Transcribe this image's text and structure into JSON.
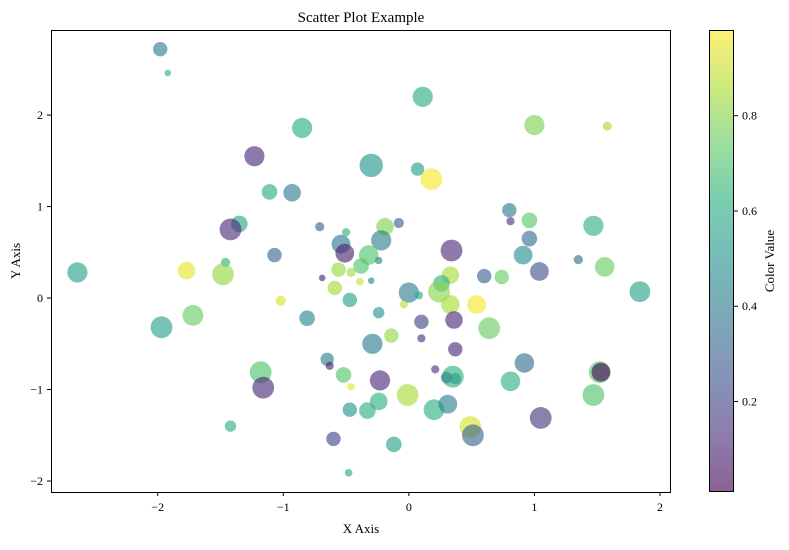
{
  "chart_data": {
    "type": "scatter",
    "title": "Scatter Plot Example",
    "xlabel": "X Axis",
    "ylabel": "Y Axis",
    "xlim": [
      -2.85,
      2.08
    ],
    "ylim": [
      -2.12,
      2.93
    ],
    "xticks": [
      -2,
      -1,
      0,
      1,
      2
    ],
    "yticks": [
      -2,
      -1,
      0,
      1,
      2
    ],
    "grid": false,
    "colorbar": {
      "label": "Color Value",
      "range": [
        0.01,
        0.98
      ],
      "ticks": [
        0.2,
        0.4,
        0.6,
        0.8
      ],
      "colormap": "viridis"
    },
    "points": [
      {
        "x": -1.98,
        "y": 2.72,
        "c": 0.42,
        "s": 0.45
      },
      {
        "x": -1.92,
        "y": 2.46,
        "c": 0.62,
        "s": 0.08
      },
      {
        "x": 0.11,
        "y": 2.2,
        "c": 0.6,
        "s": 0.72
      },
      {
        "x": -0.85,
        "y": 1.86,
        "c": 0.6,
        "s": 0.72
      },
      {
        "x": 1.0,
        "y": 1.89,
        "c": 0.78,
        "s": 0.72
      },
      {
        "x": 1.58,
        "y": 1.88,
        "c": 0.85,
        "s": 0.2
      },
      {
        "x": -1.23,
        "y": 1.55,
        "c": 0.12,
        "s": 0.72
      },
      {
        "x": -0.3,
        "y": 1.45,
        "c": 0.5,
        "s": 0.88
      },
      {
        "x": 0.07,
        "y": 1.41,
        "c": 0.55,
        "s": 0.4
      },
      {
        "x": 0.18,
        "y": 1.3,
        "c": 0.97,
        "s": 0.8
      },
      {
        "x": -1.11,
        "y": 1.16,
        "c": 0.6,
        "s": 0.5
      },
      {
        "x": -0.93,
        "y": 1.15,
        "c": 0.4,
        "s": 0.6
      },
      {
        "x": 0.8,
        "y": 0.96,
        "c": 0.4,
        "s": 0.45
      },
      {
        "x": 0.96,
        "y": 0.85,
        "c": 0.72,
        "s": 0.5
      },
      {
        "x": -1.35,
        "y": 0.81,
        "c": 0.58,
        "s": 0.55
      },
      {
        "x": -1.42,
        "y": 0.75,
        "c": 0.12,
        "s": 0.8
      },
      {
        "x": -0.71,
        "y": 0.78,
        "c": 0.3,
        "s": 0.2
      },
      {
        "x": -0.08,
        "y": 0.82,
        "c": 0.3,
        "s": 0.25
      },
      {
        "x": -0.19,
        "y": 0.78,
        "c": 0.78,
        "s": 0.6
      },
      {
        "x": 1.47,
        "y": 0.79,
        "c": 0.62,
        "s": 0.72
      },
      {
        "x": 0.81,
        "y": 0.84,
        "c": 0.15,
        "s": 0.15
      },
      {
        "x": 0.96,
        "y": 0.65,
        "c": 0.35,
        "s": 0.5
      },
      {
        "x": -0.22,
        "y": 0.63,
        "c": 0.42,
        "s": 0.72
      },
      {
        "x": -0.54,
        "y": 0.59,
        "c": 0.38,
        "s": 0.66
      },
      {
        "x": -0.5,
        "y": 0.72,
        "c": 0.62,
        "s": 0.15
      },
      {
        "x": -0.51,
        "y": 0.49,
        "c": 0.1,
        "s": 0.66
      },
      {
        "x": 0.34,
        "y": 0.52,
        "c": 0.12,
        "s": 0.8
      },
      {
        "x": 0.91,
        "y": 0.47,
        "c": 0.48,
        "s": 0.66
      },
      {
        "x": -1.07,
        "y": 0.47,
        "c": 0.32,
        "s": 0.45
      },
      {
        "x": -0.32,
        "y": 0.47,
        "c": 0.7,
        "s": 0.7
      },
      {
        "x": -0.24,
        "y": 0.41,
        "c": 0.45,
        "s": 0.12
      },
      {
        "x": -1.46,
        "y": 0.39,
        "c": 0.62,
        "s": 0.2
      },
      {
        "x": -0.38,
        "y": 0.35,
        "c": 0.7,
        "s": 0.5
      },
      {
        "x": 1.35,
        "y": 0.42,
        "c": 0.35,
        "s": 0.2
      },
      {
        "x": 1.56,
        "y": 0.34,
        "c": 0.75,
        "s": 0.7
      },
      {
        "x": -2.64,
        "y": 0.28,
        "c": 0.55,
        "s": 0.72
      },
      {
        "x": -1.77,
        "y": 0.3,
        "c": 0.95,
        "s": 0.6
      },
      {
        "x": -1.48,
        "y": 0.26,
        "c": 0.82,
        "s": 0.8
      },
      {
        "x": -0.56,
        "y": 0.31,
        "c": 0.82,
        "s": 0.45
      },
      {
        "x": -0.46,
        "y": 0.28,
        "c": 0.85,
        "s": 0.2
      },
      {
        "x": -0.39,
        "y": 0.18,
        "c": 0.9,
        "s": 0.12
      },
      {
        "x": -0.3,
        "y": 0.19,
        "c": 0.45,
        "s": 0.08
      },
      {
        "x": -0.69,
        "y": 0.22,
        "c": 0.1,
        "s": 0.08
      },
      {
        "x": 0.33,
        "y": 0.25,
        "c": 0.85,
        "s": 0.6
      },
      {
        "x": 0.26,
        "y": 0.16,
        "c": 0.62,
        "s": 0.55
      },
      {
        "x": 0.6,
        "y": 0.24,
        "c": 0.3,
        "s": 0.45
      },
      {
        "x": 0.74,
        "y": 0.23,
        "c": 0.75,
        "s": 0.45
      },
      {
        "x": 1.04,
        "y": 0.29,
        "c": 0.25,
        "s": 0.66
      },
      {
        "x": 1.84,
        "y": 0.07,
        "c": 0.55,
        "s": 0.75
      },
      {
        "x": -0.59,
        "y": 0.11,
        "c": 0.85,
        "s": 0.45
      },
      {
        "x": 0.0,
        "y": 0.06,
        "c": 0.42,
        "s": 0.72
      },
      {
        "x": 0.24,
        "y": 0.07,
        "c": 0.8,
        "s": 0.8
      },
      {
        "x": 0.08,
        "y": 0.03,
        "c": 0.6,
        "s": 0.15
      },
      {
        "x": -1.02,
        "y": -0.03,
        "c": 0.92,
        "s": 0.25
      },
      {
        "x": -0.47,
        "y": -0.02,
        "c": 0.55,
        "s": 0.45
      },
      {
        "x": -0.04,
        "y": -0.07,
        "c": 0.88,
        "s": 0.15
      },
      {
        "x": 0.33,
        "y": -0.07,
        "c": 0.85,
        "s": 0.66
      },
      {
        "x": 0.54,
        "y": -0.07,
        "c": 0.97,
        "s": 0.66
      },
      {
        "x": -1.97,
        "y": -0.32,
        "c": 0.55,
        "s": 0.8
      },
      {
        "x": -1.72,
        "y": -0.19,
        "c": 0.75,
        "s": 0.75
      },
      {
        "x": -0.81,
        "y": -0.22,
        "c": 0.45,
        "s": 0.5
      },
      {
        "x": -0.24,
        "y": -0.16,
        "c": 0.5,
        "s": 0.3
      },
      {
        "x": 0.1,
        "y": -0.26,
        "c": 0.2,
        "s": 0.45
      },
      {
        "x": 0.36,
        "y": -0.24,
        "c": 0.12,
        "s": 0.6
      },
      {
        "x": 0.64,
        "y": -0.33,
        "c": 0.75,
        "s": 0.8
      },
      {
        "x": -0.14,
        "y": -0.41,
        "c": 0.82,
        "s": 0.45
      },
      {
        "x": 0.1,
        "y": -0.44,
        "c": 0.15,
        "s": 0.15
      },
      {
        "x": -0.29,
        "y": -0.5,
        "c": 0.4,
        "s": 0.72
      },
      {
        "x": 0.37,
        "y": -0.56,
        "c": 0.12,
        "s": 0.45
      },
      {
        "x": -1.18,
        "y": -0.81,
        "c": 0.7,
        "s": 0.8
      },
      {
        "x": -1.16,
        "y": -0.98,
        "c": 0.12,
        "s": 0.8
      },
      {
        "x": -0.65,
        "y": -0.67,
        "c": 0.42,
        "s": 0.4
      },
      {
        "x": -0.63,
        "y": -0.74,
        "c": 0.1,
        "s": 0.15
      },
      {
        "x": -0.52,
        "y": -0.84,
        "c": 0.7,
        "s": 0.5
      },
      {
        "x": -0.46,
        "y": -0.97,
        "c": 0.95,
        "s": 0.12
      },
      {
        "x": -0.23,
        "y": -0.9,
        "c": 0.12,
        "s": 0.72
      },
      {
        "x": 0.21,
        "y": -0.78,
        "c": 0.15,
        "s": 0.15
      },
      {
        "x": 0.35,
        "y": -0.86,
        "c": 0.62,
        "s": 0.8
      },
      {
        "x": 0.3,
        "y": -0.87,
        "c": 0.42,
        "s": 0.3
      },
      {
        "x": 0.37,
        "y": -0.88,
        "c": 0.55,
        "s": 0.3
      },
      {
        "x": 0.92,
        "y": -0.71,
        "c": 0.35,
        "s": 0.7
      },
      {
        "x": 0.81,
        "y": -0.91,
        "c": 0.62,
        "s": 0.7
      },
      {
        "x": 1.52,
        "y": -0.81,
        "c": 0.72,
        "s": 0.8
      },
      {
        "x": 1.53,
        "y": -0.81,
        "c": 0.02,
        "s": 0.66
      },
      {
        "x": 1.47,
        "y": -1.06,
        "c": 0.7,
        "s": 0.8
      },
      {
        "x": -0.01,
        "y": -1.06,
        "c": 0.85,
        "s": 0.8
      },
      {
        "x": -0.24,
        "y": -1.13,
        "c": 0.62,
        "s": 0.6
      },
      {
        "x": -0.47,
        "y": -1.22,
        "c": 0.5,
        "s": 0.45
      },
      {
        "x": -0.33,
        "y": -1.23,
        "c": 0.62,
        "s": 0.55
      },
      {
        "x": 0.2,
        "y": -1.22,
        "c": 0.62,
        "s": 0.75
      },
      {
        "x": 0.31,
        "y": -1.16,
        "c": 0.42,
        "s": 0.66
      },
      {
        "x": 1.05,
        "y": -1.31,
        "c": 0.15,
        "s": 0.8
      },
      {
        "x": -1.42,
        "y": -1.4,
        "c": 0.62,
        "s": 0.3
      },
      {
        "x": 0.49,
        "y": -1.41,
        "c": 0.92,
        "s": 0.8
      },
      {
        "x": 0.51,
        "y": -1.5,
        "c": 0.32,
        "s": 0.8
      },
      {
        "x": -0.6,
        "y": -1.54,
        "c": 0.2,
        "s": 0.45
      },
      {
        "x": -0.12,
        "y": -1.6,
        "c": 0.55,
        "s": 0.5
      },
      {
        "x": -0.48,
        "y": -1.91,
        "c": 0.58,
        "s": 0.12
      }
    ]
  }
}
